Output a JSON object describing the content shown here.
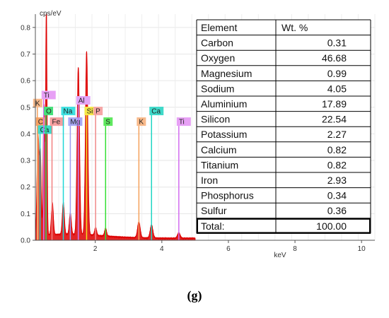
{
  "chart_data": {
    "type": "line",
    "ylabel": "cps/eV",
    "xlabel": "keV",
    "xlim": [
      0.2,
      10.4
    ],
    "ylim": [
      0,
      0.85
    ],
    "x_ticks": [
      2,
      4,
      6,
      8,
      10
    ],
    "y_ticks": [
      0.0,
      0.1,
      0.2,
      0.3,
      0.4,
      0.5,
      0.6,
      0.7,
      0.8
    ],
    "grid": true,
    "series_color": "#dd0000",
    "peaks": [
      {
        "x": 0.28,
        "y": 0.38,
        "width": 0.03
      },
      {
        "x": 0.35,
        "y": 0.3,
        "width": 0.025
      },
      {
        "x": 0.46,
        "y": 0.49,
        "width": 0.025
      },
      {
        "x": 0.53,
        "y": 0.85,
        "width": 0.02
      },
      {
        "x": 0.71,
        "y": 0.12,
        "width": 0.03
      },
      {
        "x": 1.04,
        "y": 0.12,
        "width": 0.03
      },
      {
        "x": 1.25,
        "y": 0.08,
        "width": 0.03
      },
      {
        "x": 1.49,
        "y": 0.63,
        "width": 0.035
      },
      {
        "x": 1.74,
        "y": 0.69,
        "width": 0.035
      },
      {
        "x": 2.01,
        "y": 0.03,
        "width": 0.03
      },
      {
        "x": 2.31,
        "y": 0.03,
        "width": 0.03
      },
      {
        "x": 3.31,
        "y": 0.06,
        "width": 0.04
      },
      {
        "x": 3.69,
        "y": 0.05,
        "width": 0.04
      },
      {
        "x": 4.51,
        "y": 0.02,
        "width": 0.04
      }
    ],
    "element_markers": [
      {
        "label": "C",
        "x": 0.28,
        "line_top": 0.43,
        "color": "#f3b07a",
        "tag_color": "#f6a26a"
      },
      {
        "label": "Ca",
        "x": 0.34,
        "line_top": 0.4,
        "color": "#1fd6c3",
        "tag_color": "#3fd9c9"
      },
      {
        "label": "Ti",
        "x": 0.45,
        "line_top": 0.53,
        "color": "#d36cf0",
        "tag_color": "#e7a0f5"
      },
      {
        "label": "K",
        "x": 0.26,
        "line_top": 0.5,
        "color": "#f5a15c",
        "tag_color": "#f8b98a"
      },
      {
        "label": "O",
        "x": 0.52,
        "line_top": 0.47,
        "color": "#2ed36a",
        "tag_color": "#46e07a"
      },
      {
        "label": "Fe",
        "x": 0.7,
        "line_top": 0.43,
        "color": "#f28080",
        "tag_color": "#f6a0a0"
      },
      {
        "label": "Na",
        "x": 1.04,
        "line_top": 0.47,
        "color": "#1fd6d6",
        "tag_color": "#3fe0e0"
      },
      {
        "label": "Mg",
        "x": 1.25,
        "line_top": 0.43,
        "color": "#9c9cf0",
        "tag_color": "#a9a9f5"
      },
      {
        "label": "Al",
        "x": 1.49,
        "line_top": 0.51,
        "color": "#c77cf0",
        "tag_color": "#e2a6f7"
      },
      {
        "label": "Si",
        "x": 1.74,
        "line_top": 0.47,
        "color": "#f0e020",
        "tag_color": "#f6e84a"
      },
      {
        "label": "P",
        "x": 2.01,
        "line_top": 0.47,
        "color": "#f08a8a",
        "tag_color": "#f5a6a6"
      },
      {
        "label": "S",
        "x": 2.31,
        "line_top": 0.43,
        "color": "#35e035",
        "tag_color": "#5fe85f"
      },
      {
        "label": "K",
        "x": 3.31,
        "line_top": 0.43,
        "color": "#f5a15c",
        "tag_color": "#f8b98a"
      },
      {
        "label": "Ca",
        "x": 3.69,
        "line_top": 0.47,
        "color": "#1fd6c3",
        "tag_color": "#3fd9c9"
      },
      {
        "label": "Ti",
        "x": 4.51,
        "line_top": 0.43,
        "color": "#d36cf0",
        "tag_color": "#e7a0f5"
      }
    ],
    "table": {
      "headers": [
        "Element",
        "Wt. %"
      ],
      "rows": [
        [
          "Carbon",
          "0.31"
        ],
        [
          "Oxygen",
          "46.68"
        ],
        [
          "Magnesium",
          "0.99"
        ],
        [
          "Sodium",
          "4.05"
        ],
        [
          "Aluminium",
          "17.89"
        ],
        [
          "Silicon",
          "22.54"
        ],
        [
          "Potassium",
          "2.27"
        ],
        [
          "Calcium",
          "0.82"
        ],
        [
          "Titanium",
          "0.82"
        ],
        [
          "Iron",
          "2.93"
        ],
        [
          "Phosphorus",
          "0.34"
        ],
        [
          "Sulfur",
          "0.36"
        ]
      ],
      "total_label": "Total:",
      "total_value": "100.00"
    }
  },
  "caption": "(g)"
}
